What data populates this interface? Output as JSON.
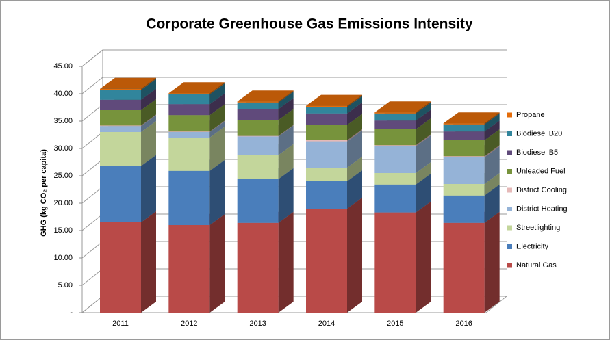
{
  "chart_data": {
    "type": "bar3d_stacked",
    "title": "Corporate Greenhouse Gas Emissions Intensity",
    "y_label": "GHG (kg CO₂ per capita)",
    "categories": [
      "2011",
      "2012",
      "2013",
      "2014",
      "2015",
      "2016"
    ],
    "series": [
      {
        "name": "Natural Gas",
        "color": "#b94a48",
        "values": [
          16.5,
          16.0,
          16.4,
          19.0,
          18.3,
          16.4
        ]
      },
      {
        "name": "Electricity",
        "color": "#4a7ebb",
        "values": [
          10.3,
          9.9,
          8.0,
          5.0,
          5.1,
          5.0
        ]
      },
      {
        "name": "Streetlighting",
        "color": "#c3d69b",
        "values": [
          6.2,
          6.1,
          4.4,
          2.5,
          2.1,
          2.1
        ]
      },
      {
        "name": "District Heating",
        "color": "#95b3d7",
        "values": [
          1.1,
          1.0,
          3.4,
          4.8,
          4.9,
          4.9
        ]
      },
      {
        "name": "District Cooling",
        "color": "#e6b9b8",
        "values": [
          0.1,
          0.1,
          0.1,
          0.2,
          0.2,
          0.2
        ]
      },
      {
        "name": "Unleaded Fuel",
        "color": "#77933c",
        "values": [
          2.8,
          3.0,
          2.9,
          2.8,
          2.9,
          2.9
        ]
      },
      {
        "name": "Biodiesel B5",
        "color": "#604a7b",
        "values": [
          1.9,
          2.0,
          2.0,
          2.1,
          1.6,
          1.6
        ]
      },
      {
        "name": "Biodiesel B20",
        "color": "#31859c",
        "values": [
          1.8,
          1.8,
          1.2,
          1.2,
          1.3,
          1.3
        ]
      },
      {
        "name": "Propane",
        "color": "#e46c0a",
        "values": [
          0.2,
          0.2,
          0.2,
          0.2,
          0.2,
          0.2
        ]
      }
    ],
    "ylim": [
      0,
      45
    ],
    "yticks": [
      {
        "value": 0,
        "label": "-"
      },
      {
        "value": 5,
        "label": "5.00"
      },
      {
        "value": 10,
        "label": "10.00"
      },
      {
        "value": 15,
        "label": "15.00"
      },
      {
        "value": 20,
        "label": "20.00"
      },
      {
        "value": 25,
        "label": "25.00"
      },
      {
        "value": 30,
        "label": "30.00"
      },
      {
        "value": 35,
        "label": "35.00"
      },
      {
        "value": 40,
        "label": "40.00"
      },
      {
        "value": 45,
        "label": "45.00"
      }
    ],
    "grid": true,
    "legend": "right"
  }
}
